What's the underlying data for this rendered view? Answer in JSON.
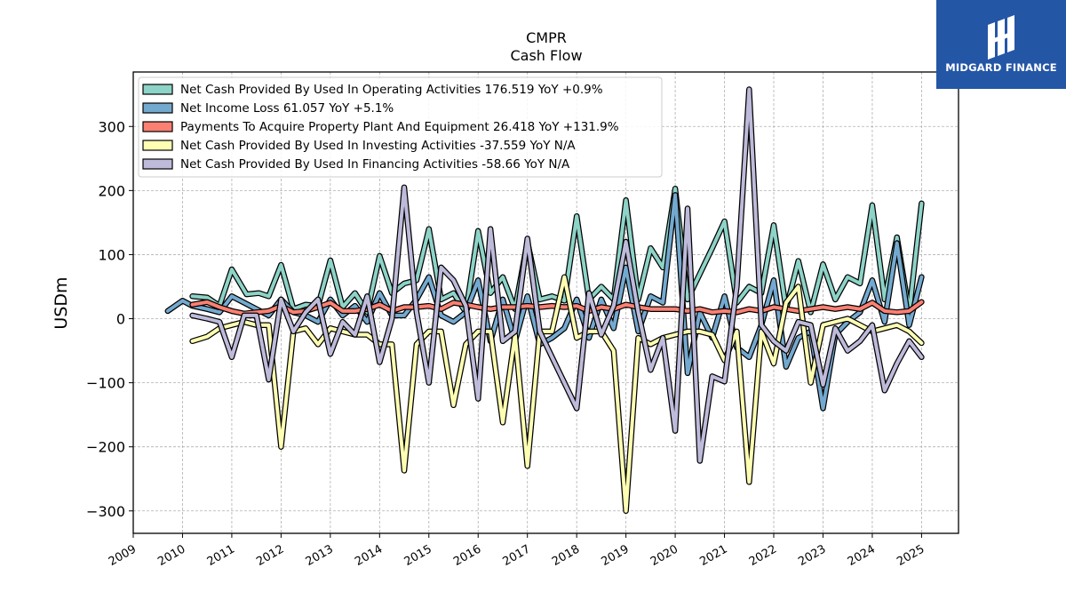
{
  "brand": {
    "name": "MIDGARD FINANCE",
    "bg_color": "#2456a6"
  },
  "chart_data": {
    "type": "line",
    "title": "CMPR",
    "subtitle": "Cash Flow",
    "ylabel": "USDm",
    "xlabel": "",
    "xlim": [
      2009.0,
      2025.75
    ],
    "ylim": [
      -335,
      385
    ],
    "yticks": [
      -300,
      -200,
      -100,
      0,
      100,
      200,
      300
    ],
    "ytick_labels": [
      "−300",
      "−200",
      "−100",
      "0",
      "100",
      "200",
      "300"
    ],
    "xticks": [
      2009,
      2010,
      2011,
      2012,
      2013,
      2014,
      2015,
      2016,
      2017,
      2018,
      2019,
      2020,
      2021,
      2022,
      2023,
      2024,
      2025
    ],
    "xtick_labels": [
      "2009",
      "2010",
      "2011",
      "2012",
      "2013",
      "2014",
      "2015",
      "2016",
      "2017",
      "2018",
      "2019",
      "2020",
      "2021",
      "2022",
      "2023",
      "2024",
      "2025"
    ],
    "grid": true,
    "legend_position": "top-left",
    "series": [
      {
        "name": "Net Cash Provided By Used In Operating Activities",
        "legend": "Net Cash Provided By Used In Operating Activities  176.519 YoY +0.9%",
        "color": "#8dd3c7",
        "x": [
          2010.2,
          2010.5,
          2010.75,
          2011.0,
          2011.3,
          2011.55,
          2011.75,
          2012.0,
          2012.25,
          2012.5,
          2012.75,
          2013.0,
          2013.25,
          2013.5,
          2013.75,
          2014.0,
          2014.25,
          2014.5,
          2014.75,
          2015.0,
          2015.25,
          2015.5,
          2015.75,
          2016.0,
          2016.25,
          2016.5,
          2016.75,
          2017.0,
          2017.25,
          2017.5,
          2017.75,
          2018.0,
          2018.25,
          2018.5,
          2018.75,
          2019.0,
          2019.25,
          2019.5,
          2019.75,
          2020.0,
          2020.25,
          2020.5,
          2020.75,
          2021.0,
          2021.25,
          2021.5,
          2021.75,
          2022.0,
          2022.25,
          2022.5,
          2022.75,
          2023.0,
          2023.25,
          2023.5,
          2023.75,
          2024.0,
          2024.25,
          2024.5,
          2024.75,
          2025.0
        ],
        "y": [
          35,
          33,
          20,
          77,
          38,
          40,
          35,
          84,
          15,
          22,
          20,
          91,
          18,
          40,
          10,
          98,
          40,
          55,
          60,
          140,
          30,
          40,
          10,
          137,
          40,
          65,
          15,
          120,
          30,
          35,
          28,
          160,
          30,
          50,
          30,
          185,
          30,
          110,
          80,
          203,
          30,
          70,
          110,
          152,
          25,
          50,
          40,
          146,
          15,
          90,
          10,
          85,
          30,
          65,
          55,
          177,
          30,
          127,
          10,
          180
        ]
      },
      {
        "name": "Net Income Loss",
        "legend": "Net Income Loss  61.057 YoY +5.1%",
        "color": "#74a9cf",
        "x": [
          2009.7,
          2010.0,
          2010.2,
          2010.5,
          2010.75,
          2011.0,
          2011.25,
          2011.5,
          2011.75,
          2012.0,
          2012.25,
          2012.5,
          2012.75,
          2013.0,
          2013.25,
          2013.5,
          2013.75,
          2014.0,
          2014.25,
          2014.5,
          2014.75,
          2015.0,
          2015.25,
          2015.5,
          2015.75,
          2016.0,
          2016.25,
          2016.5,
          2016.75,
          2017.0,
          2017.25,
          2017.5,
          2017.75,
          2018.0,
          2018.25,
          2018.5,
          2018.75,
          2019.0,
          2019.25,
          2019.5,
          2019.75,
          2020.0,
          2020.25,
          2020.5,
          2020.75,
          2021.0,
          2021.25,
          2021.5,
          2021.75,
          2022.0,
          2022.25,
          2022.5,
          2022.75,
          2023.0,
          2023.25,
          2023.5,
          2023.75,
          2024.0,
          2024.25,
          2024.5,
          2024.75,
          2025.0
        ],
        "y": [
          12,
          28,
          20,
          15,
          10,
          35,
          25,
          15,
          5,
          30,
          10,
          5,
          -5,
          30,
          5,
          20,
          -5,
          40,
          5,
          5,
          30,
          65,
          5,
          -5,
          10,
          60,
          -35,
          30,
          -35,
          35,
          -40,
          -30,
          -15,
          30,
          -30,
          30,
          -15,
          80,
          -20,
          35,
          25,
          193,
          -85,
          10,
          -30,
          35,
          -45,
          -60,
          -10,
          60,
          -75,
          -30,
          -20,
          -140,
          -25,
          -5,
          10,
          60,
          -5,
          118,
          -10,
          65
        ]
      },
      {
        "name": "Payments To Acquire Property Plant And Equipment",
        "legend": "Payments To Acquire Property Plant And Equipment  26.418 YoY +131.9%",
        "color": "#fb8072",
        "x": [
          2010.2,
          2010.5,
          2010.75,
          2011.0,
          2011.25,
          2011.5,
          2011.75,
          2012.0,
          2012.25,
          2012.5,
          2012.75,
          2013.0,
          2013.25,
          2013.5,
          2013.75,
          2014.0,
          2014.25,
          2014.5,
          2014.75,
          2015.0,
          2015.25,
          2015.5,
          2015.75,
          2016.0,
          2016.25,
          2016.5,
          2016.75,
          2017.0,
          2017.25,
          2017.5,
          2017.75,
          2018.0,
          2018.25,
          2018.5,
          2018.75,
          2019.0,
          2019.25,
          2019.5,
          2019.75,
          2020.0,
          2020.25,
          2020.5,
          2020.75,
          2021.0,
          2021.25,
          2021.5,
          2021.75,
          2022.0,
          2022.25,
          2022.5,
          2022.75,
          2023.0,
          2023.25,
          2023.5,
          2023.75,
          2024.0,
          2024.25,
          2024.5,
          2024.75,
          2025.0
        ],
        "y": [
          22,
          26,
          18,
          12,
          8,
          10,
          12,
          20,
          10,
          12,
          18,
          25,
          12,
          12,
          15,
          22,
          12,
          18,
          18,
          20,
          15,
          25,
          22,
          18,
          15,
          18,
          18,
          20,
          18,
          20,
          18,
          20,
          12,
          18,
          15,
          22,
          18,
          15,
          15,
          15,
          12,
          15,
          10,
          12,
          10,
          15,
          12,
          18,
          15,
          12,
          15,
          18,
          15,
          18,
          15,
          25,
          12,
          10,
          12,
          26
        ]
      },
      {
        "name": "Net Cash Provided By Used In Investing Activities",
        "legend": "Net Cash Provided By Used In Investing Activities  -37.559 YoY N/A",
        "color": "#ffffb3",
        "x": [
          2010.2,
          2010.5,
          2010.75,
          2011.0,
          2011.25,
          2011.5,
          2011.75,
          2012.0,
          2012.25,
          2012.5,
          2012.75,
          2013.0,
          2013.25,
          2013.5,
          2013.75,
          2014.0,
          2014.25,
          2014.5,
          2014.75,
          2015.0,
          2015.25,
          2015.5,
          2015.75,
          2016.0,
          2016.25,
          2016.5,
          2016.75,
          2017.0,
          2017.25,
          2017.5,
          2017.75,
          2018.0,
          2018.25,
          2018.5,
          2018.75,
          2019.0,
          2019.25,
          2019.5,
          2019.75,
          2020.0,
          2020.25,
          2020.5,
          2020.75,
          2021.0,
          2021.25,
          2021.5,
          2021.75,
          2022.0,
          2022.25,
          2022.5,
          2022.75,
          2023.0,
          2023.25,
          2023.5,
          2023.75,
          2024.0,
          2024.25,
          2024.5,
          2024.75,
          2025.0
        ],
        "y": [
          -35,
          -28,
          -15,
          -10,
          -5,
          -10,
          -10,
          -200,
          -20,
          -15,
          -40,
          -15,
          -20,
          -25,
          -25,
          -40,
          -40,
          -237,
          -40,
          -20,
          -20,
          -135,
          -40,
          -20,
          -20,
          -162,
          -25,
          -230,
          -20,
          -20,
          65,
          -30,
          -20,
          -20,
          -50,
          -300,
          -30,
          -40,
          -30,
          -25,
          -20,
          -20,
          -25,
          -65,
          -20,
          -255,
          -20,
          -70,
          25,
          50,
          -100,
          -10,
          -5,
          0,
          -10,
          -20,
          -15,
          -10,
          -20,
          -38
        ]
      },
      {
        "name": "Net Cash Provided By Used In Financing Activities",
        "legend": "Net Cash Provided By Used In Financing Activities  -58.66 YoY N/A",
        "color": "#bebada",
        "x": [
          2010.2,
          2010.5,
          2010.75,
          2011.0,
          2011.25,
          2011.5,
          2011.75,
          2012.0,
          2012.25,
          2012.5,
          2012.75,
          2013.0,
          2013.25,
          2013.5,
          2013.75,
          2014.0,
          2014.25,
          2014.5,
          2014.75,
          2015.0,
          2015.25,
          2015.5,
          2015.75,
          2016.0,
          2016.25,
          2016.5,
          2016.75,
          2017.0,
          2017.25,
          2017.5,
          2017.75,
          2018.0,
          2018.25,
          2018.5,
          2018.75,
          2019.0,
          2019.25,
          2019.5,
          2019.75,
          2020.0,
          2020.25,
          2020.5,
          2020.75,
          2021.0,
          2021.25,
          2021.5,
          2021.75,
          2022.0,
          2022.25,
          2022.5,
          2022.75,
          2023.0,
          2023.25,
          2023.5,
          2023.75,
          2024.0,
          2024.25,
          2024.5,
          2024.75,
          2025.0
        ],
        "y": [
          5,
          0,
          -5,
          -60,
          5,
          5,
          -95,
          30,
          -20,
          10,
          30,
          -55,
          -5,
          -25,
          35,
          -68,
          0,
          205,
          10,
          -100,
          80,
          60,
          20,
          -125,
          140,
          -35,
          -20,
          125,
          -20,
          -60,
          -100,
          -140,
          40,
          -25,
          20,
          120,
          10,
          -80,
          -30,
          -175,
          172,
          -222,
          -90,
          -98,
          50,
          358,
          -10,
          -35,
          -50,
          -5,
          -10,
          -103,
          -15,
          -50,
          -35,
          -10,
          -112,
          -70,
          -35,
          -60
        ]
      }
    ]
  }
}
